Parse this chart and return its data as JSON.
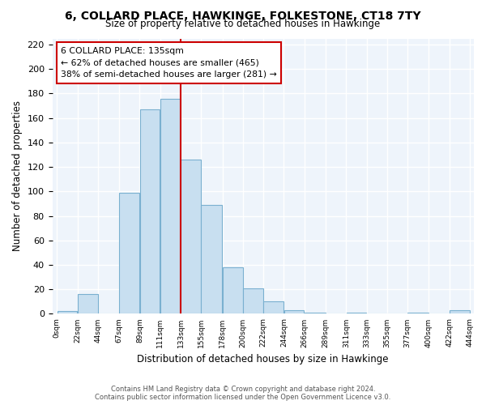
{
  "title": "6, COLLARD PLACE, HAWKINGE, FOLKESTONE, CT18 7TY",
  "subtitle": "Size of property relative to detached houses in Hawkinge",
  "xlabel": "Distribution of detached houses by size in Hawkinge",
  "ylabel": "Number of detached properties",
  "bar_color": "#c8dff0",
  "bar_edge_color": "#7ab0d0",
  "marker_line_x": 133,
  "marker_line_color": "#cc0000",
  "annotation_title": "6 COLLARD PLACE: 135sqm",
  "annotation_line1": "← 62% of detached houses are smaller (465)",
  "annotation_line2": "38% of semi-detached houses are larger (281) →",
  "bin_edges": [
    0,
    22,
    44,
    67,
    89,
    111,
    133,
    155,
    178,
    200,
    222,
    244,
    266,
    289,
    311,
    333,
    355,
    377,
    400,
    422,
    444
  ],
  "bin_counts": [
    2,
    16,
    0,
    99,
    167,
    176,
    126,
    89,
    38,
    21,
    10,
    3,
    1,
    0,
    1,
    0,
    0,
    1,
    0,
    3
  ],
  "ylim": [
    0,
    225
  ],
  "yticks": [
    0,
    20,
    40,
    60,
    80,
    100,
    120,
    140,
    160,
    180,
    200,
    220
  ],
  "xlim": [
    -5,
    448
  ],
  "footer1": "Contains HM Land Registry data © Crown copyright and database right 2024.",
  "footer2": "Contains public sector information licensed under the Open Government Licence v3.0."
}
